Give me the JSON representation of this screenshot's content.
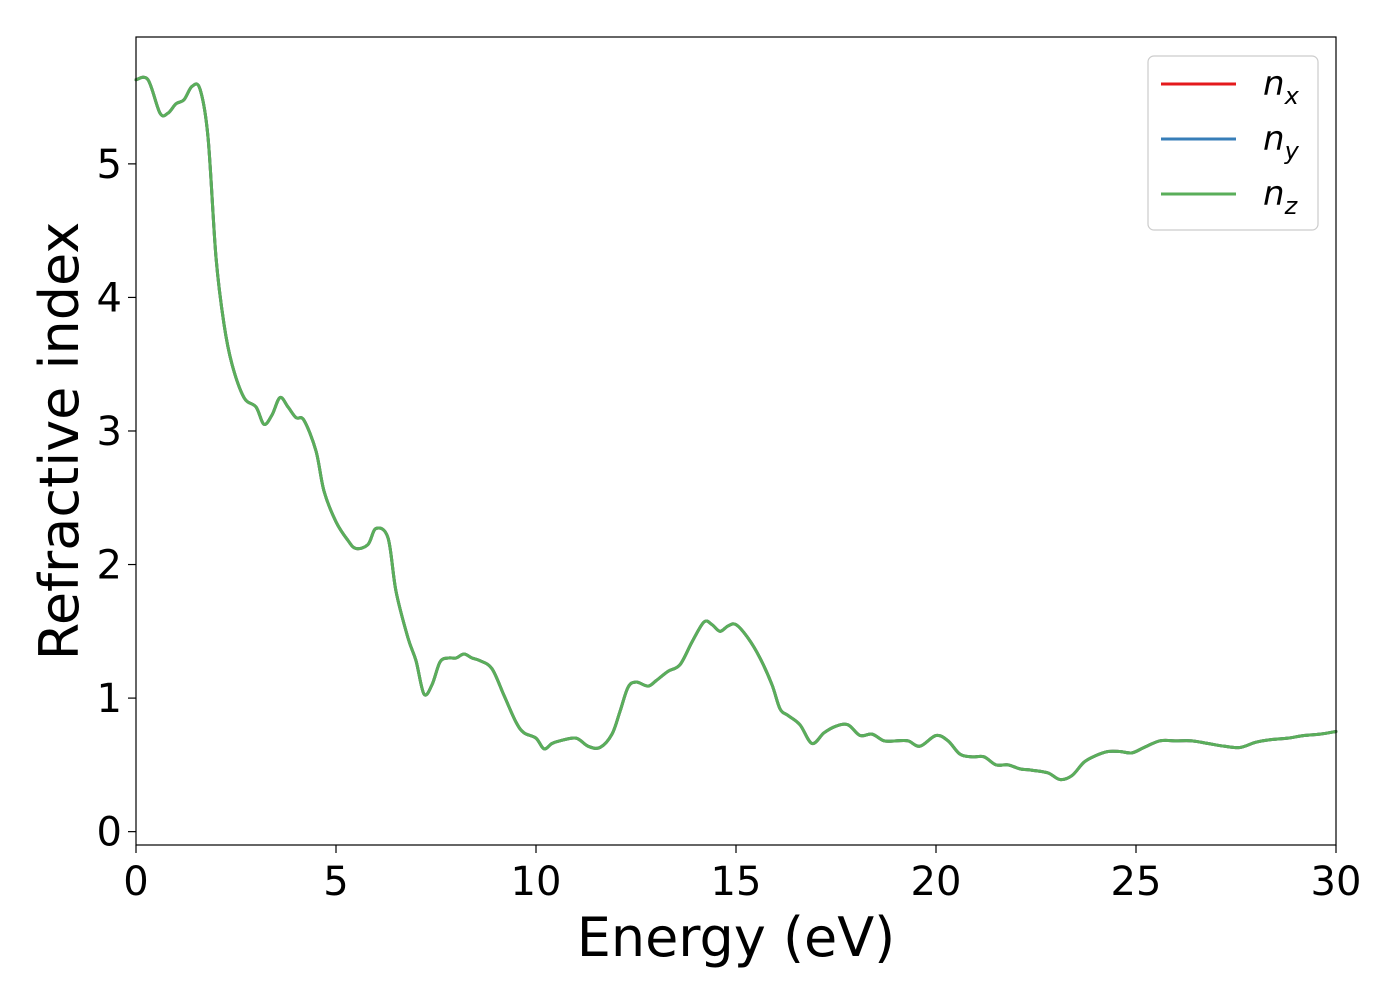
{
  "chart_data": {
    "type": "line",
    "xlabel": "Energy (eV)",
    "ylabel": "Refractive index",
    "xlim": [
      0,
      30
    ],
    "ylim": [
      -0.1,
      5.95
    ],
    "xticks": [
      0,
      5,
      10,
      15,
      20,
      25,
      30
    ],
    "yticks": [
      0,
      1,
      2,
      3,
      4,
      5
    ],
    "grid": false,
    "legend_position": "top-right",
    "x": [
      0,
      0.3,
      0.6,
      0.8,
      1.0,
      1.2,
      1.4,
      1.6,
      1.8,
      2.0,
      2.2,
      2.4,
      2.7,
      3.0,
      3.2,
      3.4,
      3.6,
      3.8,
      4.0,
      4.2,
      4.5,
      4.7,
      5.0,
      5.3,
      5.5,
      5.8,
      6.0,
      6.3,
      6.5,
      6.8,
      7.0,
      7.2,
      7.4,
      7.6,
      7.8,
      8.0,
      8.2,
      8.4,
      8.6,
      8.9,
      9.2,
      9.5,
      9.7,
      10.0,
      10.2,
      10.4,
      10.6,
      11.0,
      11.3,
      11.6,
      11.9,
      12.1,
      12.3,
      12.5,
      12.8,
      13.0,
      13.3,
      13.6,
      13.9,
      14.2,
      14.4,
      14.6,
      14.8,
      15.0,
      15.3,
      15.6,
      15.9,
      16.1,
      16.3,
      16.6,
      16.9,
      17.2,
      17.5,
      17.8,
      18.1,
      18.4,
      18.7,
      19.0,
      19.3,
      19.6,
      20.0,
      20.3,
      20.6,
      20.9,
      21.2,
      21.5,
      21.8,
      22.1,
      22.4,
      22.8,
      23.1,
      23.4,
      23.7,
      24.0,
      24.3,
      24.6,
      24.9,
      25.2,
      25.6,
      26.0,
      26.4,
      26.8,
      27.2,
      27.6,
      28.0,
      28.4,
      28.8,
      29.2,
      29.6,
      30.0
    ],
    "series": [
      {
        "name": "n_x",
        "label_main": "n",
        "label_sub": "x",
        "color": "#e41a1c",
        "values": [
          5.63,
          5.63,
          5.38,
          5.38,
          5.45,
          5.48,
          5.58,
          5.56,
          5.2,
          4.3,
          3.8,
          3.5,
          3.25,
          3.18,
          3.05,
          3.12,
          3.25,
          3.18,
          3.1,
          3.08,
          2.85,
          2.55,
          2.32,
          2.18,
          2.12,
          2.15,
          2.27,
          2.2,
          1.8,
          1.45,
          1.28,
          1.03,
          1.1,
          1.27,
          1.3,
          1.3,
          1.33,
          1.3,
          1.28,
          1.22,
          1.02,
          0.82,
          0.74,
          0.7,
          0.62,
          0.66,
          0.68,
          0.7,
          0.64,
          0.63,
          0.73,
          0.9,
          1.08,
          1.12,
          1.09,
          1.13,
          1.2,
          1.25,
          1.42,
          1.57,
          1.55,
          1.5,
          1.54,
          1.55,
          1.45,
          1.3,
          1.1,
          0.92,
          0.87,
          0.8,
          0.66,
          0.74,
          0.79,
          0.8,
          0.72,
          0.73,
          0.68,
          0.68,
          0.68,
          0.64,
          0.72,
          0.68,
          0.58,
          0.56,
          0.56,
          0.5,
          0.5,
          0.47,
          0.46,
          0.44,
          0.39,
          0.42,
          0.52,
          0.57,
          0.6,
          0.6,
          0.59,
          0.63,
          0.68,
          0.68,
          0.68,
          0.66,
          0.64,
          0.63,
          0.67,
          0.69,
          0.7,
          0.72,
          0.73,
          0.75
        ]
      },
      {
        "name": "n_y",
        "label_main": "n",
        "label_sub": "y",
        "color": "#377eb8",
        "values": [
          5.63,
          5.63,
          5.38,
          5.38,
          5.45,
          5.48,
          5.58,
          5.56,
          5.2,
          4.3,
          3.8,
          3.5,
          3.25,
          3.18,
          3.05,
          3.12,
          3.25,
          3.18,
          3.1,
          3.08,
          2.85,
          2.55,
          2.32,
          2.18,
          2.12,
          2.15,
          2.27,
          2.2,
          1.8,
          1.45,
          1.28,
          1.03,
          1.1,
          1.27,
          1.3,
          1.3,
          1.33,
          1.3,
          1.28,
          1.22,
          1.02,
          0.82,
          0.74,
          0.7,
          0.62,
          0.66,
          0.68,
          0.7,
          0.64,
          0.63,
          0.73,
          0.9,
          1.08,
          1.12,
          1.09,
          1.13,
          1.2,
          1.25,
          1.42,
          1.57,
          1.55,
          1.5,
          1.54,
          1.55,
          1.45,
          1.3,
          1.1,
          0.92,
          0.87,
          0.8,
          0.66,
          0.74,
          0.79,
          0.8,
          0.72,
          0.73,
          0.68,
          0.68,
          0.68,
          0.64,
          0.72,
          0.68,
          0.58,
          0.56,
          0.56,
          0.5,
          0.5,
          0.47,
          0.46,
          0.44,
          0.39,
          0.42,
          0.52,
          0.57,
          0.6,
          0.6,
          0.59,
          0.63,
          0.68,
          0.68,
          0.68,
          0.66,
          0.64,
          0.63,
          0.67,
          0.69,
          0.7,
          0.72,
          0.73,
          0.75
        ]
      },
      {
        "name": "n_z",
        "label_main": "n",
        "label_sub": "z",
        "color": "#5aae5a",
        "values": [
          5.63,
          5.63,
          5.38,
          5.38,
          5.45,
          5.48,
          5.58,
          5.56,
          5.2,
          4.3,
          3.8,
          3.5,
          3.25,
          3.18,
          3.05,
          3.12,
          3.25,
          3.18,
          3.1,
          3.08,
          2.85,
          2.55,
          2.32,
          2.18,
          2.12,
          2.15,
          2.27,
          2.2,
          1.8,
          1.45,
          1.28,
          1.03,
          1.1,
          1.27,
          1.3,
          1.3,
          1.33,
          1.3,
          1.28,
          1.22,
          1.02,
          0.82,
          0.74,
          0.7,
          0.62,
          0.66,
          0.68,
          0.7,
          0.64,
          0.63,
          0.73,
          0.9,
          1.08,
          1.12,
          1.09,
          1.13,
          1.2,
          1.25,
          1.42,
          1.57,
          1.55,
          1.5,
          1.54,
          1.55,
          1.45,
          1.3,
          1.1,
          0.92,
          0.87,
          0.8,
          0.66,
          0.74,
          0.79,
          0.8,
          0.72,
          0.73,
          0.68,
          0.68,
          0.68,
          0.64,
          0.72,
          0.68,
          0.58,
          0.56,
          0.56,
          0.5,
          0.5,
          0.47,
          0.46,
          0.44,
          0.39,
          0.42,
          0.52,
          0.57,
          0.6,
          0.6,
          0.59,
          0.63,
          0.68,
          0.68,
          0.68,
          0.66,
          0.64,
          0.63,
          0.67,
          0.69,
          0.7,
          0.72,
          0.73,
          0.75
        ]
      }
    ]
  }
}
